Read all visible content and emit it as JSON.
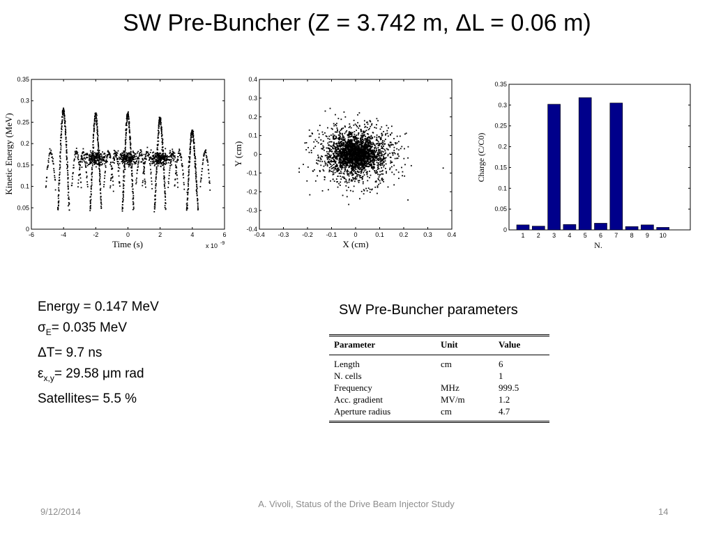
{
  "slide": {
    "title": "SW Pre-Buncher (Z = 3.742 m, ΔL = 0.06 m)",
    "footer_date": "9/12/2014",
    "footer_center": "A. Vivoli, Status of the Drive Beam Injector Study",
    "page_number": "14"
  },
  "stats": {
    "energy": "Energy = 0.147 MeV",
    "sigma_symbol": "σ",
    "sigma_sub": "E",
    "sigma_rest": "= 0.035 MeV",
    "delta_t": "ΔT= 9.7 ns",
    "eps_symbol": "ε",
    "eps_sub": "x,y",
    "eps_rest": "= 29.58 μm rad",
    "satellites": "Satellites= 5.5 %"
  },
  "params_table": {
    "title": "SW Pre-Buncher parameters",
    "headers": [
      "Parameter",
      "Unit",
      "Value"
    ],
    "rows": [
      [
        "Length",
        "cm",
        "6"
      ],
      [
        "N. cells",
        "",
        "1"
      ],
      [
        "Frequency",
        "MHz",
        "999.5"
      ],
      [
        "Acc. gradient",
        "MV/m",
        "1.2"
      ],
      [
        "Aperture radius",
        "cm",
        "4.7"
      ]
    ]
  },
  "chart_data": [
    {
      "type": "scatter",
      "xlabel": "Time  (s)",
      "ylabel": "Kinetic Energy  (MeV)",
      "x_multiplier": "x 10",
      "x_multiplier_exp": "-9",
      "xlim": [
        -6,
        6
      ],
      "ylim": [
        0,
        0.35
      ],
      "xticks": [
        "-6",
        "-4",
        "-2",
        "0",
        "2",
        "4",
        "6"
      ],
      "yticks": [
        "0",
        "0.05",
        "0.1",
        "0.15",
        "0.2",
        "0.25",
        "0.3",
        "0.35"
      ],
      "marker_color": "#000000",
      "bunch_peaks": [
        {
          "t": -4.0,
          "E": 0.28
        },
        {
          "t": -2.0,
          "E": 0.27
        },
        {
          "t": 0.0,
          "E": 0.27
        },
        {
          "t": 2.0,
          "E": 0.26
        },
        {
          "t": 4.0,
          "E": 0.23
        }
      ],
      "core_energy": 0.165
    },
    {
      "type": "scatter",
      "xlabel": "X  (cm)",
      "ylabel": "Y  (cm)",
      "xlim": [
        -0.4,
        0.4
      ],
      "ylim": [
        -0.4,
        0.4
      ],
      "xticks": [
        "-0.4",
        "-0.3",
        "-0.2",
        "-0.1",
        "0",
        "0.1",
        "0.2",
        "0.3",
        "0.4"
      ],
      "yticks": [
        "-0.4",
        "-0.3",
        "-0.2",
        "-0.1",
        "0",
        "0.1",
        "0.2",
        "0.3",
        "0.4"
      ],
      "marker_color": "#000000",
      "distribution": "gaussian, centred at (0, 0)"
    },
    {
      "type": "bar",
      "xlabel": "N.",
      "ylabel": "Charge (C/C0)",
      "ylim": [
        0,
        0.35
      ],
      "categories": [
        "1",
        "2",
        "3",
        "4",
        "5",
        "6",
        "7",
        "8",
        "9",
        "10"
      ],
      "values": [
        0.012,
        0.009,
        0.302,
        0.013,
        0.318,
        0.016,
        0.305,
        0.008,
        0.012,
        0.006
      ],
      "yticks": [
        "0",
        "0.05",
        "0.1",
        "0.15",
        "0.2",
        "0.25",
        "0.3",
        "0.35"
      ],
      "bar_color": "#00008b"
    }
  ]
}
